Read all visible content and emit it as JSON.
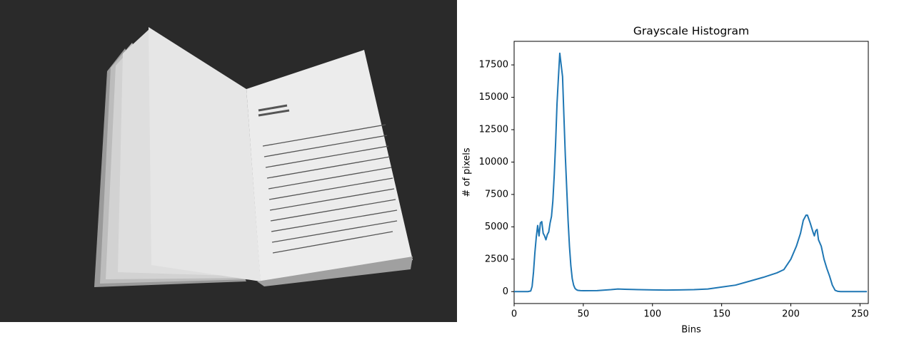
{
  "chart_data": {
    "type": "line",
    "title": "Grayscale Histogram",
    "x_label": "Bins",
    "y_label": "# of pixels",
    "x": [
      0,
      5,
      10,
      12,
      13,
      14,
      15,
      16,
      17,
      18,
      19,
      20,
      21,
      22,
      23,
      24,
      25,
      26,
      27,
      28,
      29,
      30,
      31,
      32,
      33,
      34,
      35,
      36,
      37,
      38,
      39,
      40,
      41,
      42,
      43,
      44,
      45,
      46,
      48,
      50,
      60,
      70,
      75,
      80,
      90,
      100,
      110,
      120,
      130,
      140,
      150,
      160,
      170,
      180,
      190,
      195,
      200,
      204,
      207,
      209,
      211,
      212,
      214,
      216,
      217,
      218,
      219,
      220,
      222,
      224,
      226,
      228,
      230,
      232,
      234,
      236,
      240,
      250,
      255
    ],
    "series": [
      {
        "color": "#1f77b4",
        "values": [
          0,
          0,
          0,
          50,
          400,
          1500,
          3000,
          4200,
          5100,
          4300,
          5300,
          5400,
          4500,
          4300,
          4000,
          4400,
          4600,
          5300,
          5800,
          7000,
          9000,
          11500,
          14500,
          16500,
          18400,
          17500,
          16600,
          13500,
          10500,
          8000,
          5500,
          3500,
          2000,
          1000,
          500,
          250,
          150,
          100,
          80,
          70,
          80,
          150,
          200,
          180,
          150,
          130,
          120,
          130,
          150,
          200,
          350,
          500,
          800,
          1100,
          1450,
          1700,
          2500,
          3500,
          4500,
          5500,
          5900,
          5900,
          5300,
          4600,
          4300,
          4700,
          4800,
          4000,
          3500,
          2500,
          1800,
          1200,
          500,
          100,
          20,
          0,
          0,
          0,
          0
        ]
      }
    ],
    "xlim": [
      0,
      256
    ],
    "ylim": [
      -920,
      19320
    ],
    "xticks": [
      0,
      50,
      100,
      150,
      200,
      250
    ],
    "yticks": [
      0,
      2500,
      5000,
      7500,
      10000,
      12500,
      15000,
      17500
    ]
  }
}
